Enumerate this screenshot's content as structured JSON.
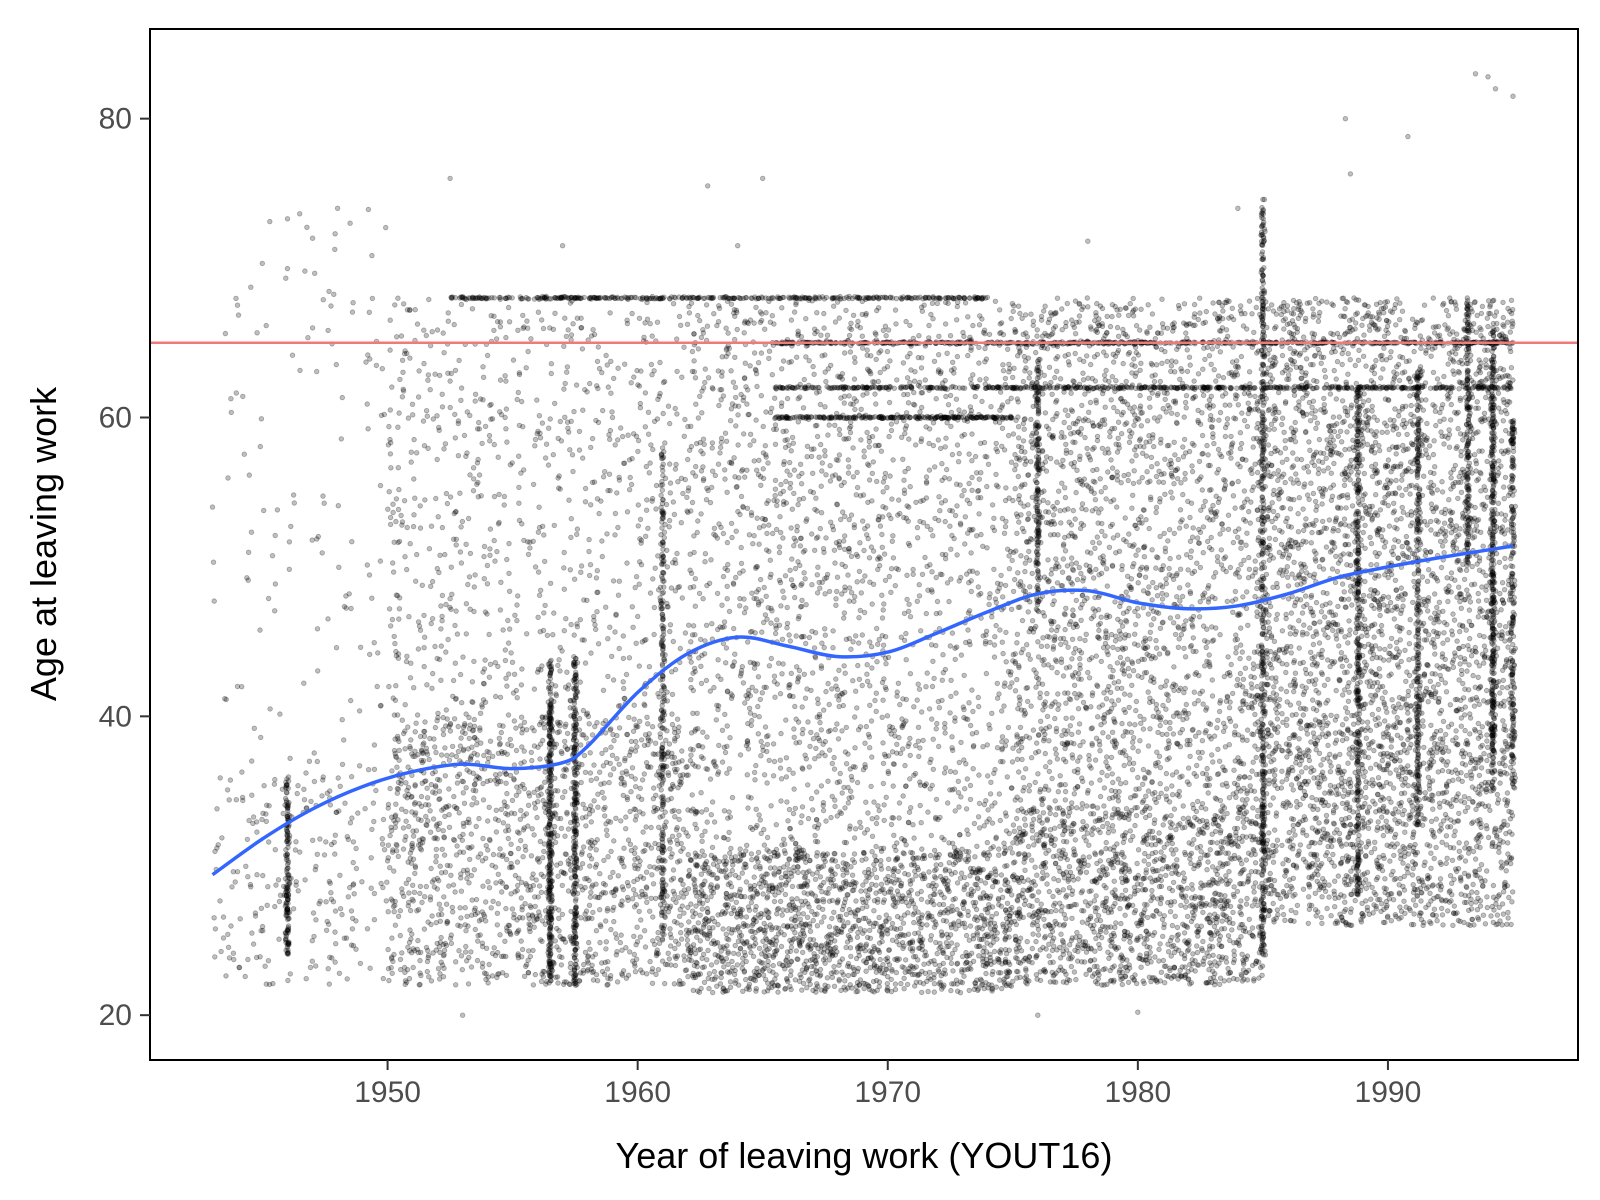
{
  "chart_data": {
    "type": "scatter",
    "title": "",
    "xlabel": "Year of leaving work (YOUT16)",
    "ylabel": "Age at leaving work",
    "xlim": [
      1940.5,
      1997.6
    ],
    "ylim": [
      17.0,
      86.0
    ],
    "x_ticks": [
      1950,
      1960,
      1970,
      1980,
      1990
    ],
    "y_ticks": [
      20,
      40,
      60,
      80
    ],
    "x_tick_labels": [
      "1950",
      "1960",
      "1970",
      "1980",
      "1990"
    ],
    "y_tick_labels": [
      "20",
      "40",
      "60",
      "80"
    ],
    "grid": false,
    "legend": "none",
    "reference_line": {
      "y": 65,
      "color": "#f07a7a"
    },
    "points_color": "#000000",
    "points_opacity": 0.25,
    "smooth_color": "#3366ff",
    "series": [
      {
        "kind": "points",
        "density_regions": [
          {
            "x": [
              1943.0,
              1950.0
            ],
            "y": [
              22.0,
              36.0
            ],
            "weight": 220
          },
          {
            "x": [
              1943.0,
              1950.0
            ],
            "y": [
              36.0,
              74.0
            ],
            "weight": 130
          },
          {
            "x": [
              1950.0,
              1962.0
            ],
            "y": [
              22.0,
              40.0
            ],
            "weight": 1500
          },
          {
            "x": [
              1950.0,
              1962.0
            ],
            "y": [
              40.0,
              68.0
            ],
            "weight": 800
          },
          {
            "x": [
              1962.0,
              1975.0
            ],
            "y": [
              21.5,
              31.0
            ],
            "weight": 1700
          },
          {
            "x": [
              1962.0,
              1975.0
            ],
            "y": [
              31.0,
              68.0
            ],
            "weight": 1900
          },
          {
            "x": [
              1975.0,
              1985.0
            ],
            "y": [
              22.0,
              34.0
            ],
            "weight": 1400
          },
          {
            "x": [
              1975.0,
              1985.0
            ],
            "y": [
              34.0,
              68.0
            ],
            "weight": 2100
          },
          {
            "x": [
              1985.0,
              1995.0
            ],
            "y": [
              26.0,
              40.0
            ],
            "weight": 1400
          },
          {
            "x": [
              1985.0,
              1995.0
            ],
            "y": [
              40.0,
              68.0
            ],
            "weight": 2300
          }
        ],
        "vertical_streaks": [
          {
            "x": 1946.0,
            "y": [
              24,
              36
            ],
            "n": 150
          },
          {
            "x": 1956.5,
            "y": [
              22,
              44
            ],
            "n": 300
          },
          {
            "x": 1957.5,
            "y": [
              22,
              44
            ],
            "n": 250
          },
          {
            "x": 1961.0,
            "y": [
              25,
              58
            ],
            "n": 220
          },
          {
            "x": 1976.0,
            "y": [
              47,
              64
            ],
            "n": 160
          },
          {
            "x": 1985.0,
            "y": [
              24,
              75
            ],
            "n": 420
          },
          {
            "x": 1988.8,
            "y": [
              28,
              62
            ],
            "n": 320
          },
          {
            "x": 1991.2,
            "y": [
              32,
              63
            ],
            "n": 260
          },
          {
            "x": 1993.2,
            "y": [
              50,
              68
            ],
            "n": 160
          },
          {
            "x": 1994.2,
            "y": [
              35,
              66
            ],
            "n": 360
          },
          {
            "x": 1995.0,
            "y": [
              35,
              60
            ],
            "n": 200
          }
        ],
        "horizontal_bands": [
          {
            "y": 68.0,
            "x": [
              1952.5,
              1974.0
            ],
            "n": 380
          },
          {
            "y": 65.0,
            "x": [
              1965.5,
              1995.0
            ],
            "n": 520
          },
          {
            "y": 62.0,
            "x": [
              1965.5,
              1995.0
            ],
            "n": 520
          },
          {
            "y": 60.0,
            "x": [
              1965.5,
              1975.0
            ],
            "n": 240
          }
        ],
        "outliers": [
          [
            1943.0,
            54.0
          ],
          [
            1944.0,
            42.0
          ],
          [
            1946.0,
            73.3
          ],
          [
            1947.0,
            72.0
          ],
          [
            1948.0,
            74.0
          ],
          [
            1948.5,
            73.0
          ],
          [
            1952.5,
            76.0
          ],
          [
            1957.0,
            71.5
          ],
          [
            1962.8,
            75.5
          ],
          [
            1965.0,
            76.0
          ],
          [
            1964.0,
            71.5
          ],
          [
            1978.0,
            71.8
          ],
          [
            1984.0,
            74.0
          ],
          [
            1988.3,
            80.0
          ],
          [
            1988.5,
            76.3
          ],
          [
            1990.8,
            78.8
          ],
          [
            1993.5,
            83.0
          ],
          [
            1994.0,
            82.8
          ],
          [
            1994.3,
            82.0
          ],
          [
            1995.0,
            81.5
          ],
          [
            1953.0,
            20.0
          ],
          [
            1976.0,
            20.0
          ],
          [
            1980.0,
            20.2
          ]
        ]
      },
      {
        "kind": "smooth",
        "name": "",
        "x": [
          1943,
          1945,
          1947,
          1949,
          1951,
          1953,
          1955,
          1957,
          1958,
          1960,
          1962,
          1964,
          1966,
          1968,
          1970,
          1972,
          1974,
          1976,
          1978,
          1980,
          1982,
          1984,
          1986,
          1988,
          1990,
          1992,
          1995
        ],
        "y": [
          29.4,
          31.8,
          33.8,
          35.3,
          36.3,
          36.8,
          36.5,
          36.9,
          38.0,
          41.6,
          44.2,
          45.3,
          44.7,
          44.0,
          44.3,
          45.6,
          47.0,
          48.2,
          48.4,
          47.6,
          47.2,
          47.4,
          48.2,
          49.3,
          50.0,
          50.6,
          51.4
        ]
      }
    ]
  }
}
